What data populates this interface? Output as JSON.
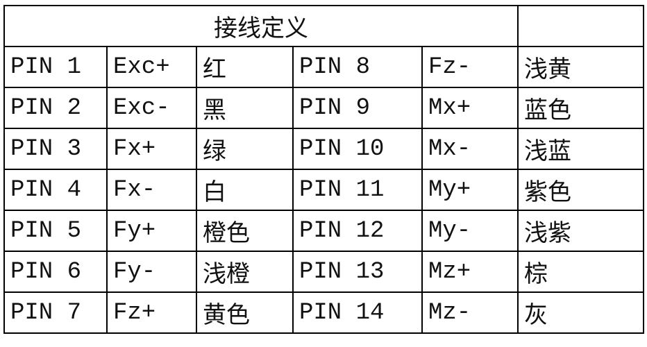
{
  "title": "接线定义",
  "rows": [
    [
      "PIN 1",
      "Exc+",
      "红",
      "PIN 8",
      "Fz-",
      "浅黄"
    ],
    [
      "PIN 2",
      "Exc-",
      "黑",
      "PIN 9",
      "Mx+",
      "蓝色"
    ],
    [
      "PIN 3",
      "Fx+",
      "绿",
      "PIN 10",
      "Mx-",
      "浅蓝"
    ],
    [
      "PIN 4",
      "Fx-",
      "白",
      "PIN 11",
      "My+",
      "紫色"
    ],
    [
      "PIN 5",
      "Fy+",
      "橙色",
      "PIN 12",
      "My-",
      "浅紫"
    ],
    [
      "PIN 6",
      "Fy-",
      "浅橙",
      "PIN 13",
      "Mz+",
      "棕"
    ],
    [
      "PIN 7",
      "Fz+",
      "黄色",
      "PIN 14",
      "Mz-",
      "灰"
    ]
  ]
}
